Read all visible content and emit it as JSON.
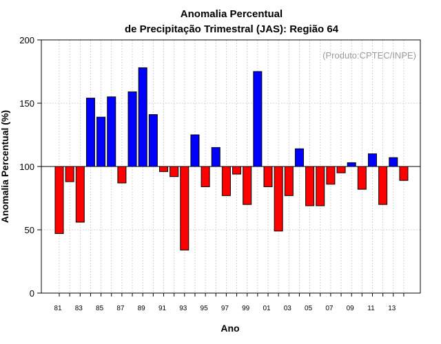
{
  "chart_data": {
    "type": "bar",
    "title_lines": [
      "Anomalia Percentual",
      "de Precipitação Trimestral (JAS): Região 64"
    ],
    "xlabel": "Ano",
    "ylabel": "Anomalia Percentual (%)",
    "credit": "(Produto:CPTEC/INPE)",
    "baseline": 100,
    "ylim": [
      0,
      200
    ],
    "yticks": [
      0,
      50,
      100,
      150,
      200
    ],
    "grid": true,
    "colors": {
      "above": "#0000ff",
      "below": "#ff0000",
      "edge": "#000000",
      "grid": "#c8c8c8",
      "credit": "#9a9a9a"
    },
    "categories": [
      "81",
      "82",
      "83",
      "84",
      "85",
      "86",
      "87",
      "88",
      "89",
      "90",
      "91",
      "92",
      "93",
      "94",
      "95",
      "96",
      "97",
      "98",
      "99",
      "00",
      "01",
      "02",
      "03",
      "04",
      "05",
      "06",
      "07",
      "08",
      "09",
      "10",
      "11",
      "12",
      "13",
      "14"
    ],
    "xtick_labels": [
      "81",
      "83",
      "85",
      "87",
      "89",
      "91",
      "93",
      "95",
      "97",
      "99",
      "01",
      "03",
      "05",
      "07",
      "09",
      "11",
      "13"
    ],
    "values": [
      47,
      88,
      56,
      154,
      139,
      155,
      87,
      159,
      178,
      141,
      96,
      92,
      34,
      125,
      84,
      115,
      77,
      94,
      70,
      175,
      84,
      49,
      77,
      114,
      69,
      69,
      86,
      95,
      103,
      82,
      110,
      70,
      107,
      89
    ]
  }
}
